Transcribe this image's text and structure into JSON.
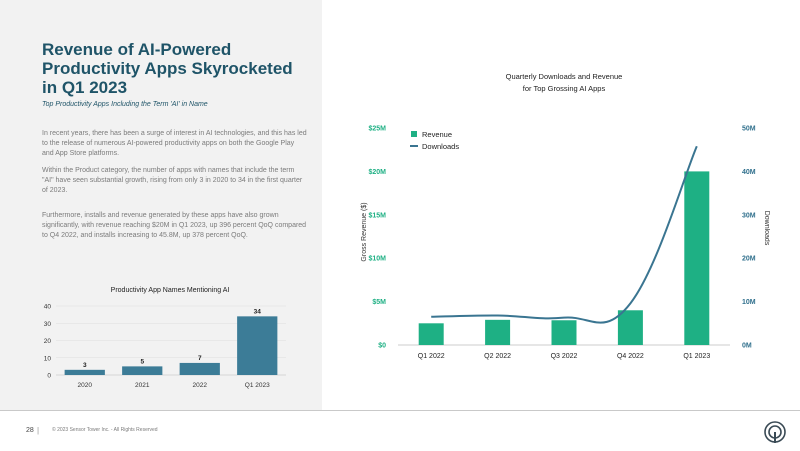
{
  "page": {
    "title": "Revenue of AI-Powered Productivity Apps Skyrocketed in Q1 2023",
    "subtitle": "Top Productivity Apps Including the Term 'AI' in Name",
    "paragraphs": [
      "In recent years, there has been a surge of interest in AI technologies, and this has led to the release of numerous AI-powered productivity apps on both the Google Play and App Store platforms.",
      "Within the Product category, the number of apps with names that include the term \"AI\" have seen substantial growth, rising from only 3 in 2020 to 34 in the first quarter of 2023.",
      "Furthermore, installs and revenue generated by these apps have also grown significantly, with revenue reaching $20M in Q1 2023, up 396 percent QoQ compared to Q4 2022, and installs increasing to 45.8M, up 378 percent QoQ."
    ]
  },
  "colors": {
    "panel_bg": "#f2f2f2",
    "title": "#1f5468",
    "small_bar": "#3c7c97",
    "revenue_bar": "#1eb084",
    "downloads_line": "#3a7591",
    "axis_text": "#1eb084",
    "right_axis_text": "#2f6f8c"
  },
  "footer": {
    "page_number": "28",
    "separator": "|",
    "copyright": "© 2023 Sensor Tower Inc. - All Rights Reserved"
  },
  "chart_data": [
    {
      "type": "bar",
      "title": "Productivity App Names Mentioning AI",
      "categories": [
        "2020",
        "2021",
        "2022",
        "Q1 2023"
      ],
      "values": [
        3,
        5,
        7,
        34
      ],
      "value_labels": [
        "3",
        "5",
        "7",
        "34"
      ],
      "ylim": [
        0,
        40
      ],
      "yticks": [
        0,
        10,
        20,
        30,
        40
      ],
      "ytick_labels": [
        "0",
        "10",
        "20",
        "30",
        "40"
      ],
      "grid": true
    },
    {
      "type": "bar",
      "title_lines": [
        "Quarterly Downloads and Revenue",
        "for Top Grossing AI Apps"
      ],
      "categories": [
        "Q1 2022",
        "Q2 2022",
        "Q3 2022",
        "Q4 2022",
        "Q1 2023"
      ],
      "series": [
        {
          "name": "Revenue",
          "kind": "bar",
          "axis": "left",
          "values": [
            2.5,
            2.9,
            2.85,
            4.0,
            20.0
          ]
        },
        {
          "name": "Downloads",
          "kind": "line",
          "axis": "right",
          "values": [
            6.5,
            6.8,
            6.3,
            9.6,
            45.8
          ]
        }
      ],
      "ylabel": "Gross Revenue ($)",
      "ylabel_right": "Downloads",
      "ylim": [
        0,
        25
      ],
      "ylim_right": [
        0,
        50
      ],
      "yticks": [
        0,
        5,
        10,
        15,
        20,
        25
      ],
      "ytick_labels": [
        "$0",
        "$5M",
        "$10M",
        "$15M",
        "$20M",
        "$25M"
      ],
      "yticks_right": [
        0,
        10,
        20,
        30,
        40,
        50
      ],
      "ytick_labels_right": [
        "0M",
        "10M",
        "20M",
        "30M",
        "40M",
        "50M"
      ],
      "legend": [
        "Revenue",
        "Downloads"
      ],
      "legend_position": "top-left",
      "grid": false
    }
  ]
}
